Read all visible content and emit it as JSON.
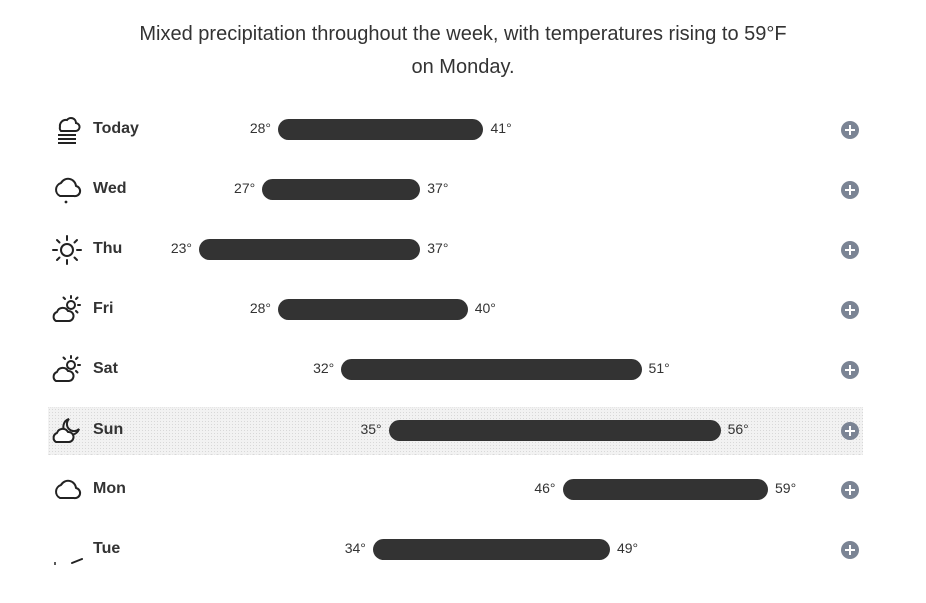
{
  "summary": {
    "line1": "Mixed precipitation throughout the week, with temperatures rising to 59°F",
    "line2": "on Monday."
  },
  "temp_scale": {
    "min": 23,
    "max": 59
  },
  "days": [
    {
      "label": "Today",
      "icon": "fog-icon",
      "low": 28,
      "high": 41,
      "low_label": "28°",
      "high_label": "41°"
    },
    {
      "label": "Wed",
      "icon": "cloud-drizzle-icon",
      "low": 27,
      "high": 37,
      "low_label": "27°",
      "high_label": "37°"
    },
    {
      "label": "Thu",
      "icon": "sun-icon",
      "low": 23,
      "high": 37,
      "low_label": "23°",
      "high_label": "37°"
    },
    {
      "label": "Fri",
      "icon": "partly-cloudy-icon",
      "low": 28,
      "high": 40,
      "low_label": "28°",
      "high_label": "40°"
    },
    {
      "label": "Sat",
      "icon": "partly-cloudy-icon",
      "low": 32,
      "high": 51,
      "low_label": "32°",
      "high_label": "51°"
    },
    {
      "label": "Sun",
      "icon": "partly-cloudy-night-icon",
      "low": 35,
      "high": 56,
      "low_label": "35°",
      "high_label": "56°",
      "highlighted": true
    },
    {
      "label": "Mon",
      "icon": "cloud-icon",
      "low": 46,
      "high": 59,
      "low_label": "46°",
      "high_label": "59°"
    },
    {
      "label": "Tue",
      "icon": "rain-icon",
      "low": 34,
      "high": 49,
      "low_label": "34°",
      "high_label": "49°"
    }
  ]
}
